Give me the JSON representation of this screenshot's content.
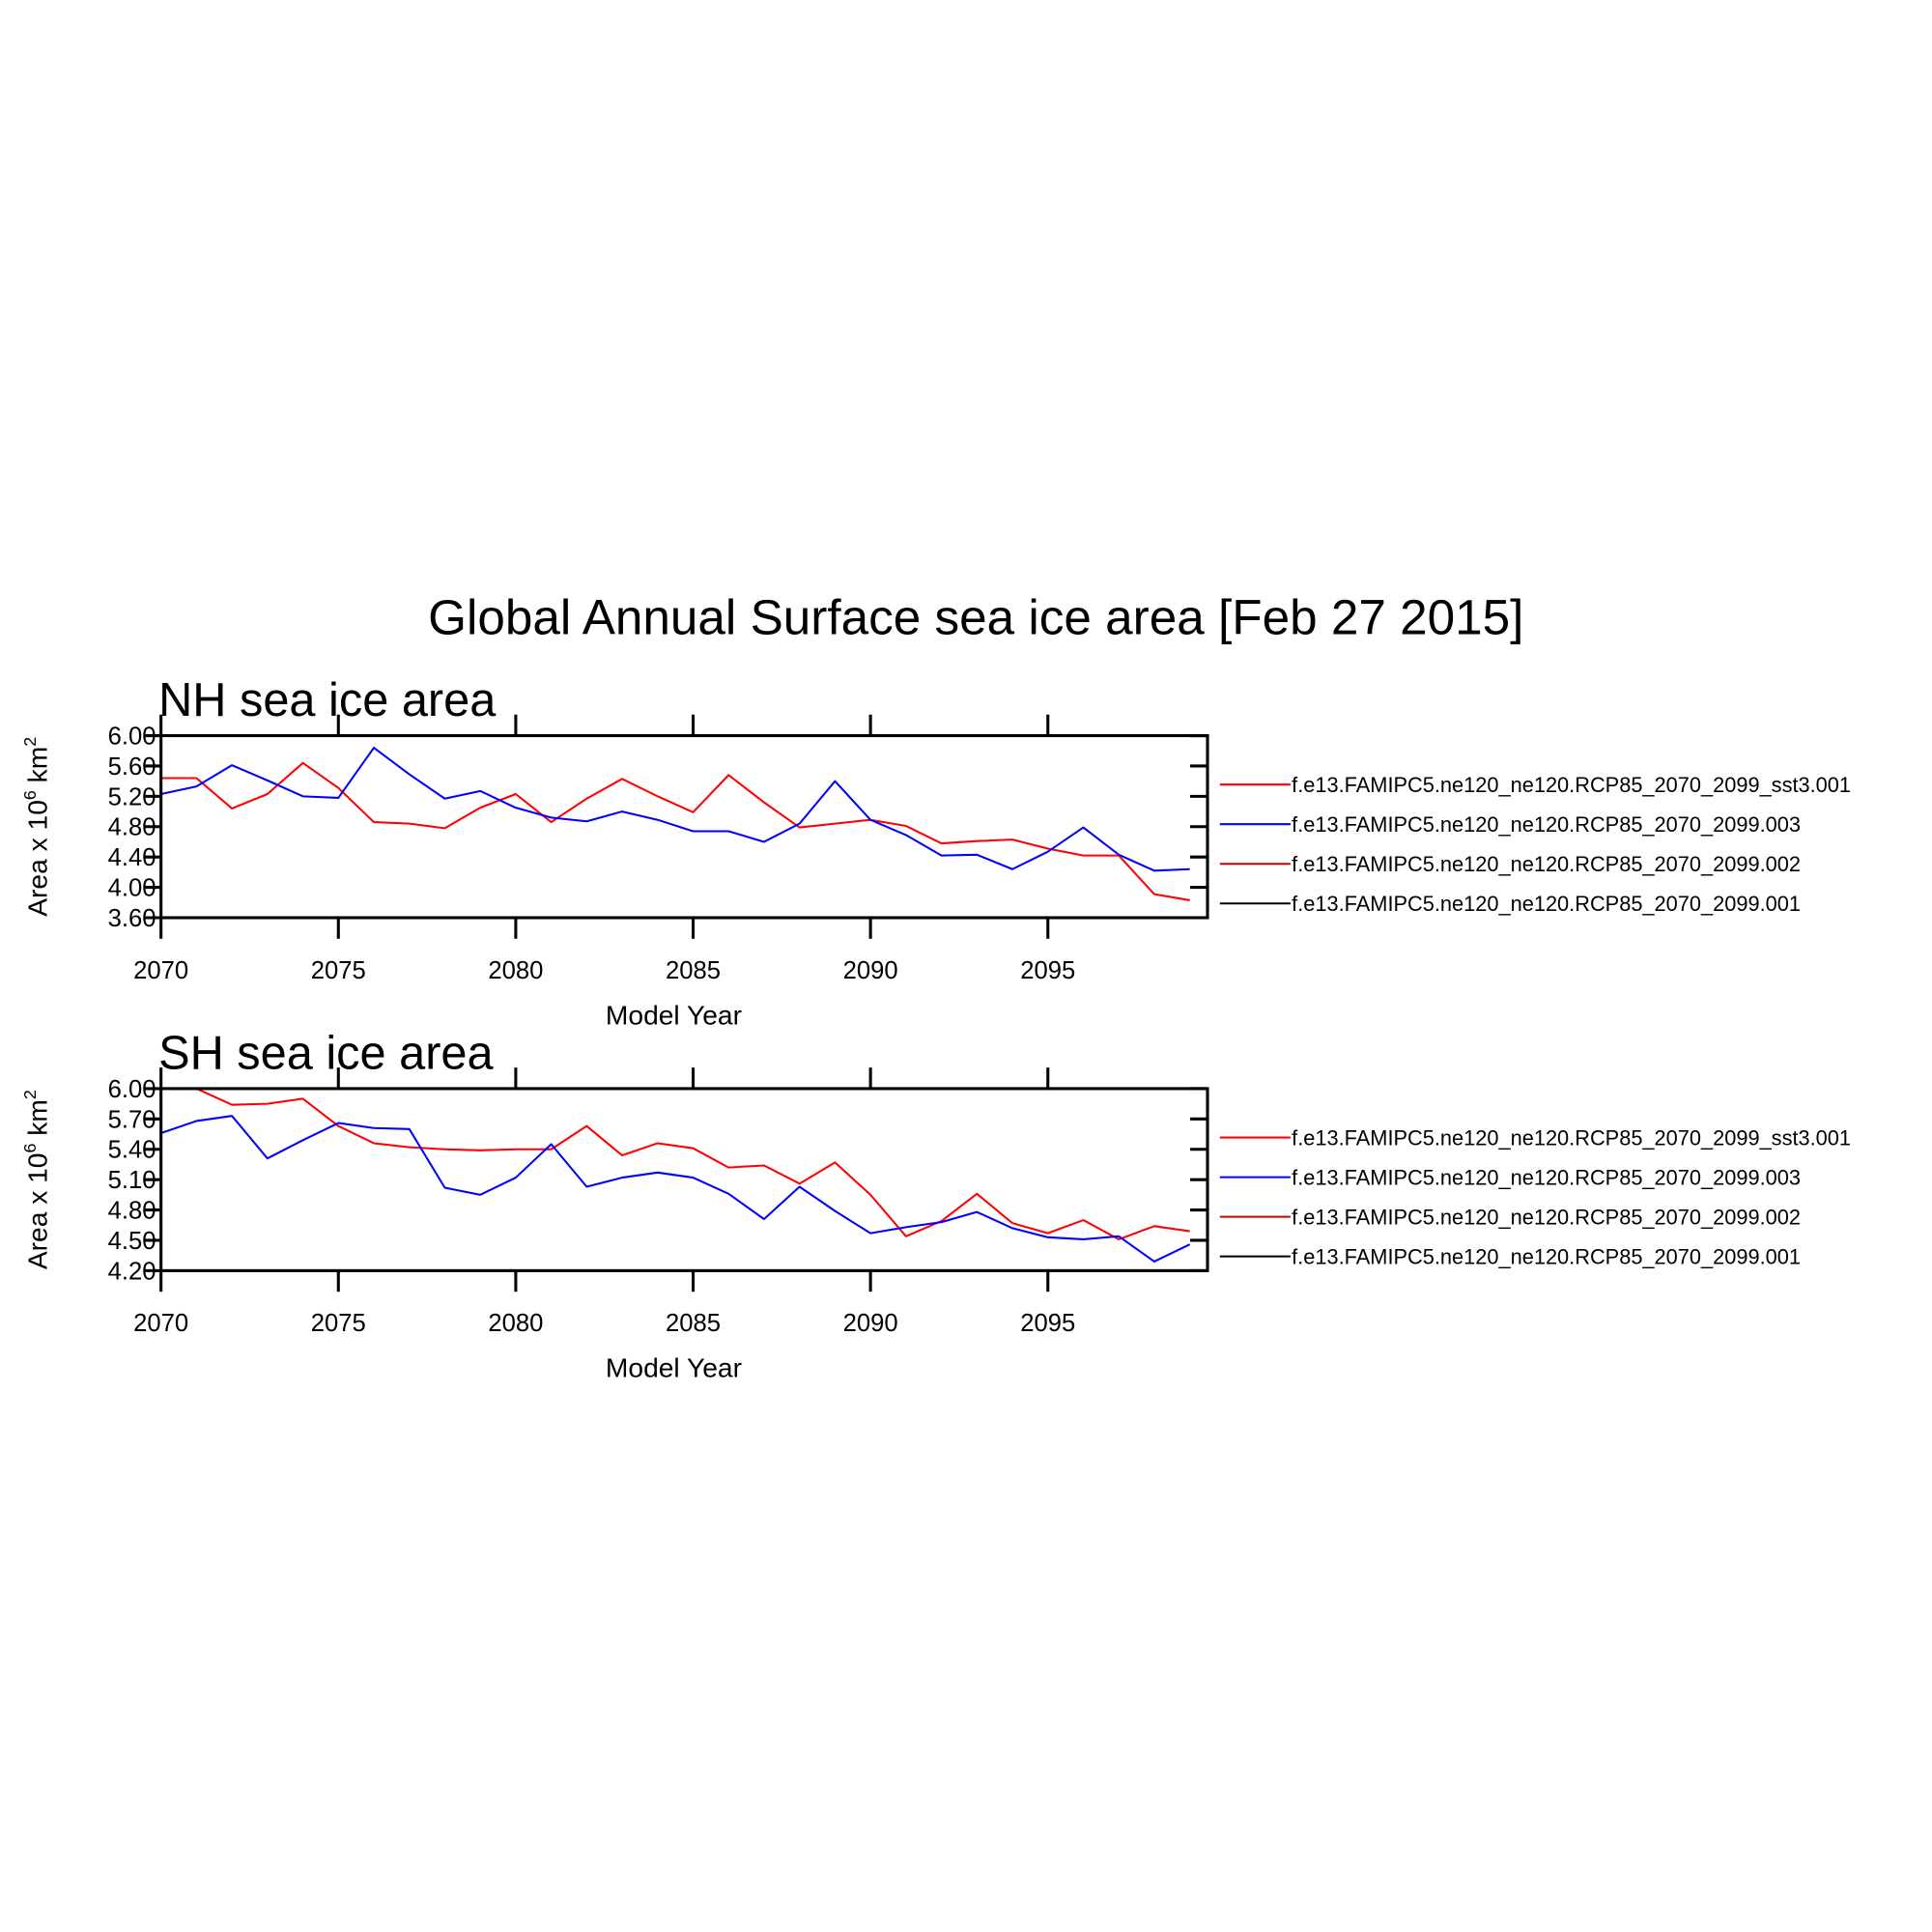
{
  "title": "Global Annual Surface sea ice area [Feb 27 2015]",
  "chart_data": [
    {
      "type": "line",
      "title": "NH sea ice area",
      "xlabel": "Model Year",
      "ylabel": [
        "Area x 10",
        "6",
        " km",
        "2"
      ],
      "x": [
        2070,
        2071,
        2072,
        2073,
        2074,
        2075,
        2076,
        2077,
        2078,
        2079,
        2080,
        2081,
        2082,
        2083,
        2084,
        2085,
        2086,
        2087,
        2088,
        2089,
        2090,
        2091,
        2092,
        2093,
        2094,
        2095,
        2096,
        2097,
        2098,
        2099
      ],
      "xlim": [
        2070,
        2099.5
      ],
      "xticks": [
        2070,
        2075,
        2080,
        2085,
        2090,
        2095
      ],
      "ylim": [
        3.6,
        6.0
      ],
      "yticks": [
        {
          "value": 3.6,
          "label": "3.60"
        },
        {
          "value": 4.0,
          "label": "4.00"
        },
        {
          "value": 4.4,
          "label": "4.40"
        },
        {
          "value": 4.8,
          "label": "4.80"
        },
        {
          "value": 5.2,
          "label": "5.20"
        },
        {
          "value": 5.6,
          "label": "5.60"
        },
        {
          "value": 6.0,
          "label": "6.00"
        }
      ],
      "series": [
        {
          "name": "f.e13.FAMIPC5.ne120_ne120.RCP85_2070_2099_sst3.001",
          "color": "#ff0000",
          "values": [
            5.44,
            5.44,
            5.04,
            5.23,
            5.64,
            5.31,
            4.86,
            4.84,
            4.78,
            5.05,
            5.23,
            4.86,
            5.17,
            5.43,
            5.2,
            4.99,
            5.48,
            5.12,
            4.79,
            4.84,
            4.89,
            4.81,
            4.58,
            4.61,
            4.63,
            4.51,
            4.42,
            4.42,
            3.91,
            3.83
          ]
        },
        {
          "name": "f.e13.FAMIPC5.ne120_ne120.RCP85_2070_2099.003",
          "color": "#0000ff",
          "values": [
            5.23,
            5.33,
            5.61,
            5.41,
            5.2,
            5.18,
            5.84,
            5.49,
            5.17,
            5.27,
            5.05,
            4.92,
            4.87,
            5.0,
            4.89,
            4.74,
            4.74,
            4.6,
            4.84,
            5.4,
            4.89,
            4.69,
            4.42,
            4.43,
            4.24,
            4.47,
            4.79,
            4.43,
            4.22,
            4.24
          ]
        },
        {
          "name": "f.e13.FAMIPC5.ne120_ne120.RCP85_2070_2099.002",
          "color": "#cc0000",
          "values": [
            null,
            null,
            null,
            null,
            null,
            null,
            null,
            null,
            null,
            null,
            null,
            null,
            null,
            null,
            null,
            null,
            null,
            null,
            null,
            null,
            null,
            null,
            null,
            null,
            null,
            null,
            null,
            null,
            null,
            null
          ]
        },
        {
          "name": "f.e13.FAMIPC5.ne120_ne120.RCP85_2070_2099.001",
          "color": "#000000",
          "values": [
            null,
            null,
            null,
            null,
            null,
            null,
            null,
            null,
            null,
            null,
            null,
            null,
            null,
            null,
            null,
            null,
            null,
            null,
            null,
            null,
            null,
            null,
            null,
            null,
            null,
            null,
            null,
            null,
            null,
            null
          ]
        }
      ]
    },
    {
      "type": "line",
      "title": "SH sea ice area",
      "xlabel": "Model Year",
      "ylabel": [
        "Area x 10",
        "6",
        " km",
        "2"
      ],
      "x": [
        2070,
        2071,
        2072,
        2073,
        2074,
        2075,
        2076,
        2077,
        2078,
        2079,
        2080,
        2081,
        2082,
        2083,
        2084,
        2085,
        2086,
        2087,
        2088,
        2089,
        2090,
        2091,
        2092,
        2093,
        2094,
        2095,
        2096,
        2097,
        2098,
        2099
      ],
      "xlim": [
        2070,
        2099.5
      ],
      "xticks": [
        2070,
        2075,
        2080,
        2085,
        2090,
        2095
      ],
      "ylim": [
        4.2,
        6.0
      ],
      "yticks": [
        {
          "value": 4.2,
          "label": "4.20"
        },
        {
          "value": 4.5,
          "label": "4.50"
        },
        {
          "value": 4.8,
          "label": "4.80"
        },
        {
          "value": 5.1,
          "label": "5.10"
        },
        {
          "value": 5.4,
          "label": "5.40"
        },
        {
          "value": 5.7,
          "label": "5.70"
        },
        {
          "value": 6.0,
          "label": "6.00"
        }
      ],
      "series": [
        {
          "name": "f.e13.FAMIPC5.ne120_ne120.RCP85_2070_2099_sst3.001",
          "color": "#ff0000",
          "values": [
            6.0,
            6.0,
            5.84,
            5.85,
            5.9,
            5.63,
            5.46,
            5.42,
            5.4,
            5.39,
            5.4,
            5.4,
            5.63,
            5.34,
            5.46,
            5.41,
            5.22,
            5.24,
            5.06,
            5.27,
            4.95,
            4.54,
            4.69,
            4.96,
            4.67,
            4.57,
            4.7,
            4.51,
            4.64,
            4.59
          ]
        },
        {
          "name": "f.e13.FAMIPC5.ne120_ne120.RCP85_2070_2099.003",
          "color": "#0000ff",
          "values": [
            5.56,
            5.68,
            5.73,
            5.31,
            5.49,
            5.66,
            5.61,
            5.6,
            5.02,
            4.95,
            5.12,
            5.45,
            5.03,
            5.12,
            5.17,
            5.12,
            4.96,
            4.71,
            5.03,
            4.79,
            4.57,
            4.63,
            4.68,
            4.78,
            4.62,
            4.53,
            4.51,
            4.54,
            4.29,
            4.46
          ]
        },
        {
          "name": "f.e13.FAMIPC5.ne120_ne120.RCP85_2070_2099.002",
          "color": "#cc0000",
          "values": [
            null,
            null,
            null,
            null,
            null,
            null,
            null,
            null,
            null,
            null,
            null,
            null,
            null,
            null,
            null,
            null,
            null,
            null,
            null,
            null,
            null,
            null,
            null,
            null,
            null,
            null,
            null,
            null,
            null,
            null
          ]
        },
        {
          "name": "f.e13.FAMIPC5.ne120_ne120.RCP85_2070_2099.001",
          "color": "#000000",
          "values": [
            null,
            null,
            null,
            null,
            null,
            null,
            null,
            null,
            null,
            null,
            null,
            null,
            null,
            null,
            null,
            null,
            null,
            null,
            null,
            null,
            null,
            null,
            null,
            null,
            null,
            null,
            null,
            null,
            null,
            null
          ]
        }
      ]
    }
  ]
}
